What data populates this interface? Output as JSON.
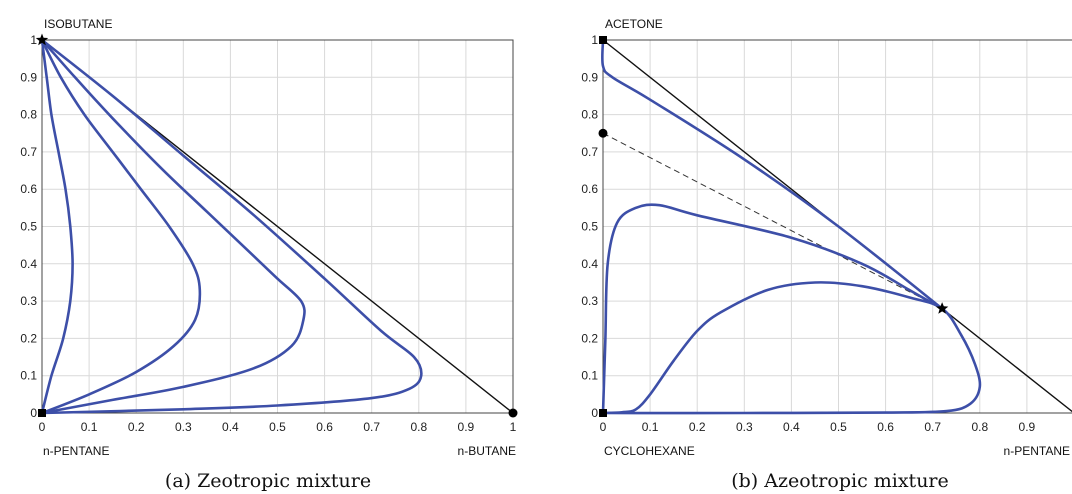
{
  "chart_data": [
    {
      "type": "line",
      "caption": "(a) Zeotropic mixture",
      "corner_labels": {
        "top": "ISOBUTANE",
        "bottom_left": "n-PENTANE",
        "bottom_right": "n-BUTANE"
      },
      "xlim": [
        0,
        1
      ],
      "ylim": [
        0,
        1
      ],
      "x_ticks": [
        "0",
        "0.1",
        "0.2",
        "0.3",
        "0.4",
        "0.5",
        "0.6",
        "0.7",
        "0.8",
        "0.9",
        "1"
      ],
      "y_ticks": [
        "0",
        "0.1",
        "0.2",
        "0.3",
        "0.4",
        "0.5",
        "0.6",
        "0.7",
        "0.8",
        "0.9",
        "1"
      ],
      "grid": true,
      "diagonal": [
        [
          0,
          1
        ],
        [
          1,
          0
        ]
      ],
      "series": [
        {
          "points": [
            [
              0,
              0
            ],
            [
              0.02,
              0.1
            ],
            [
              0.045,
              0.2
            ],
            [
              0.06,
              0.3
            ],
            [
              0.065,
              0.4
            ],
            [
              0.06,
              0.5
            ],
            [
              0.05,
              0.6
            ],
            [
              0.035,
              0.7
            ],
            [
              0.02,
              0.8
            ],
            [
              0.01,
              0.9
            ],
            [
              0,
              1
            ]
          ]
        },
        {
          "points": [
            [
              0,
              0
            ],
            [
              0.1,
              0.05
            ],
            [
              0.2,
              0.11
            ],
            [
              0.28,
              0.18
            ],
            [
              0.325,
              0.25
            ],
            [
              0.335,
              0.33
            ],
            [
              0.32,
              0.4
            ],
            [
              0.27,
              0.5
            ],
            [
              0.21,
              0.6
            ],
            [
              0.15,
              0.7
            ],
            [
              0.09,
              0.8
            ],
            [
              0.04,
              0.9
            ],
            [
              0,
              1
            ]
          ]
        },
        {
          "points": [
            [
              0,
              0
            ],
            [
              0.15,
              0.035
            ],
            [
              0.3,
              0.07
            ],
            [
              0.45,
              0.12
            ],
            [
              0.53,
              0.18
            ],
            [
              0.555,
              0.25
            ],
            [
              0.55,
              0.3
            ],
            [
              0.5,
              0.36
            ],
            [
              0.45,
              0.42
            ],
            [
              0.35,
              0.54
            ],
            [
              0.25,
              0.66
            ],
            [
              0.15,
              0.79
            ],
            [
              0.07,
              0.9
            ],
            [
              0,
              1
            ]
          ]
        },
        {
          "points": [
            [
              0,
              0
            ],
            [
              0.3,
              0.01
            ],
            [
              0.5,
              0.02
            ],
            [
              0.7,
              0.04
            ],
            [
              0.78,
              0.065
            ],
            [
              0.805,
              0.1
            ],
            [
              0.79,
              0.15
            ],
            [
              0.72,
              0.22
            ],
            [
              0.6,
              0.36
            ],
            [
              0.45,
              0.53
            ],
            [
              0.3,
              0.69
            ],
            [
              0.15,
              0.85
            ],
            [
              0,
              1
            ]
          ]
        }
      ],
      "markers": [
        {
          "x": 0,
          "y": 0,
          "shape": "square"
        },
        {
          "x": 1,
          "y": 0,
          "shape": "circle"
        },
        {
          "x": 0,
          "y": 1,
          "shape": "star"
        }
      ]
    },
    {
      "type": "line",
      "caption": "(b) Azeotropic mixture",
      "corner_labels": {
        "top": "ACETONE",
        "bottom_left": "CYCLOHEXANE",
        "bottom_right": "n-PENTANE"
      },
      "xlim": [
        0,
        1
      ],
      "ylim": [
        0,
        1
      ],
      "x_ticks": [
        "0",
        "0.1",
        "0.2",
        "0.3",
        "0.4",
        "0.5",
        "0.6",
        "0.7",
        "0.8",
        "0.9"
      ],
      "y_ticks": [
        "0",
        "0.1",
        "0.2",
        "0.3",
        "0.4",
        "0.5",
        "0.6",
        "0.7",
        "0.8",
        "0.9",
        "1"
      ],
      "grid": true,
      "diagonal": [
        [
          0,
          1
        ],
        [
          1,
          0
        ]
      ],
      "dashed_line": [
        [
          0,
          0.75
        ],
        [
          0.72,
          0.28
        ]
      ],
      "series": [
        {
          "points": [
            [
              0,
              1
            ],
            [
              0,
              0.93
            ],
            [
              0.02,
              0.9
            ],
            [
              0.1,
              0.84
            ],
            [
              0.3,
              0.68
            ],
            [
              0.5,
              0.5
            ],
            [
              0.72,
              0.28
            ]
          ]
        },
        {
          "points": [
            [
              0,
              0
            ],
            [
              0.005,
              0.2
            ],
            [
              0.01,
              0.4
            ],
            [
              0.03,
              0.51
            ],
            [
              0.07,
              0.55
            ],
            [
              0.12,
              0.557
            ],
            [
              0.2,
              0.53
            ],
            [
              0.4,
              0.47
            ],
            [
              0.55,
              0.4
            ],
            [
              0.65,
              0.33
            ],
            [
              0.72,
              0.28
            ]
          ]
        },
        {
          "points": [
            [
              0,
              0
            ],
            [
              0.04,
              0.002
            ],
            [
              0.07,
              0.01
            ],
            [
              0.1,
              0.05
            ],
            [
              0.15,
              0.14
            ],
            [
              0.2,
              0.22
            ],
            [
              0.25,
              0.27
            ],
            [
              0.35,
              0.33
            ],
            [
              0.45,
              0.35
            ],
            [
              0.55,
              0.34
            ],
            [
              0.65,
              0.31
            ],
            [
              0.72,
              0.28
            ],
            [
              0.76,
              0.21
            ],
            [
              0.79,
              0.13
            ],
            [
              0.8,
              0.07
            ],
            [
              0.78,
              0.025
            ],
            [
              0.73,
              0.005
            ],
            [
              0.6,
              0.001
            ],
            [
              0.3,
              0
            ],
            [
              0,
              0
            ]
          ]
        }
      ],
      "markers": [
        {
          "x": 0,
          "y": 0,
          "shape": "square"
        },
        {
          "x": 0,
          "y": 1,
          "shape": "square"
        },
        {
          "x": 0,
          "y": 0.75,
          "shape": "circle"
        },
        {
          "x": 0.72,
          "y": 0.28,
          "shape": "star"
        }
      ]
    }
  ]
}
